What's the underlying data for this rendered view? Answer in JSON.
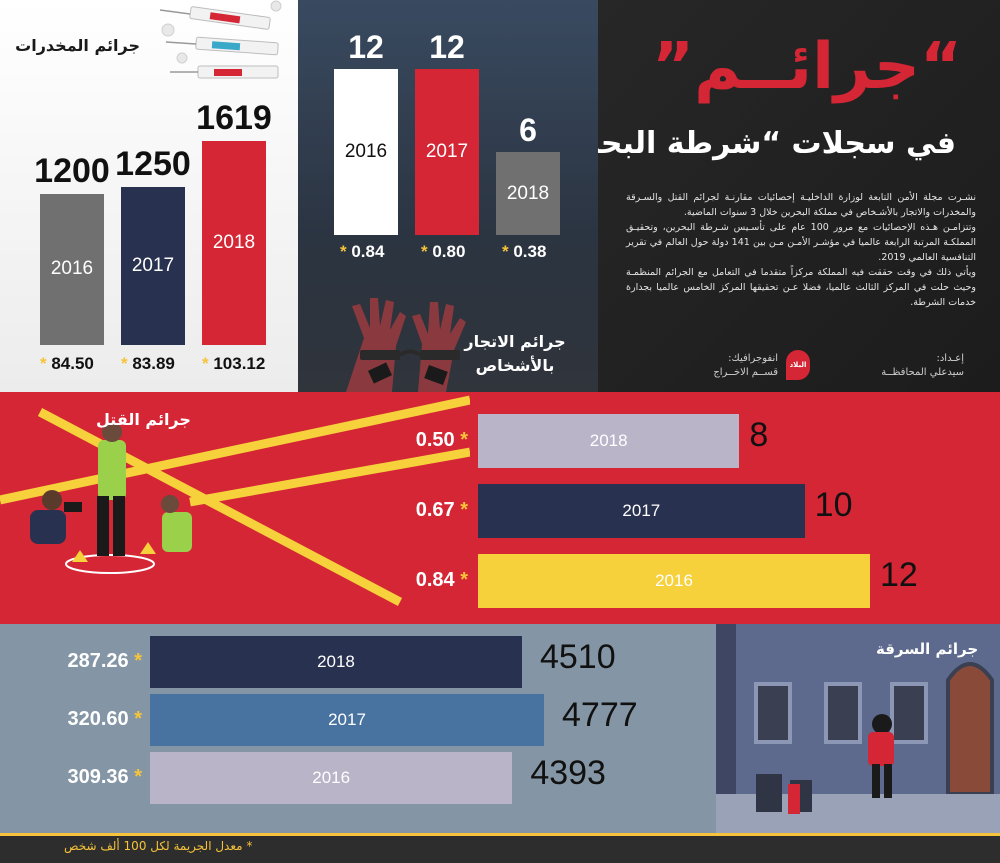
{
  "header": {
    "title_big": "“جرائــم”",
    "title_sub": "في سجلات “شرطة البحرين“",
    "intro": [
      "نشـرت مجلة الأمن التابعة لوزارة الداخليـة إحصائيات مقارنـة لجرائم القتل والسـرقة والمخدرات والاتجار بالأشـخاص في مملكة البحرين خلال 3 سنوات الماضية.",
      "وتتزامـن هـذه الإحصائيات مع مرور 100 عام على تأسـيس شـرطة البحرين، وتحقيـق المملكـة المرتبة الرابعة عالميا في مؤشـر الأمـن مـن بين 141 دولة حول العالم في تقرير التنافسية العالمي 2019.",
      "ويأتي ذلك في وقت حققت فيه المملكة مركزاً متقدما في التعامل مع الجرائم المنظمـة وحيث حلت في المركز الثالث عالميا، فضلا عـن تحقيقها المركز الخامس عالميا بجدارة خدمات الشرطة."
    ],
    "credits": {
      "prep_label": "إعـداد:",
      "prep_name": "سيدعلي المحافظــة",
      "logo_text": "البلاد",
      "graphics_label": "انفوجرافيك:",
      "graphics_name": "قســم الاخــراج"
    }
  },
  "footnote": "* معدل الجريمة لكل 100 ألف شخص",
  "chart_data": [
    {
      "type": "bar",
      "title": "جرائم المخدرات",
      "categories": [
        "2016",
        "2017",
        "2018"
      ],
      "values": [
        1200,
        1250,
        1619
      ],
      "value_labels": [
        "1200",
        "1250",
        "1619"
      ],
      "rates": [
        "84.50",
        "83.89",
        "103.12"
      ],
      "colors": [
        "#707071",
        "#28314f",
        "#d42635"
      ],
      "ylim": [
        0,
        1619
      ]
    },
    {
      "type": "bar",
      "title": "جرائم الاتجار بالأشخاص",
      "categories": [
        "2016",
        "2017",
        "2018"
      ],
      "values": [
        12,
        12,
        6
      ],
      "value_labels": [
        "12",
        "12",
        "6"
      ],
      "rates": [
        "0.84",
        "0.80",
        "0.38"
      ],
      "colors": [
        "#ffffff",
        "#d42635",
        "#707071"
      ],
      "ylim": [
        0,
        12
      ]
    },
    {
      "type": "bar",
      "orientation": "horizontal",
      "title": "جرائم القتل",
      "categories": [
        "2018",
        "2017",
        "2016"
      ],
      "values": [
        8,
        10,
        12
      ],
      "value_labels": [
        "8",
        "10",
        "12"
      ],
      "rates": [
        "0.50",
        "0.67",
        "0.84"
      ],
      "colors": [
        "#b9b4c8",
        "#28314f",
        "#f7d13c"
      ],
      "xlim": [
        0,
        12
      ]
    },
    {
      "type": "bar",
      "orientation": "horizontal",
      "title": "جرائم السرقة",
      "categories": [
        "2018",
        "2017",
        "2016"
      ],
      "values": [
        4510,
        4777,
        4393
      ],
      "value_labels": [
        "4510",
        "4777",
        "4393"
      ],
      "rates": [
        "287.26",
        "320.60",
        "309.36"
      ],
      "colors": [
        "#28314f",
        "#4873a0",
        "#b9b4c8"
      ],
      "xlim": [
        0,
        4777
      ]
    }
  ]
}
